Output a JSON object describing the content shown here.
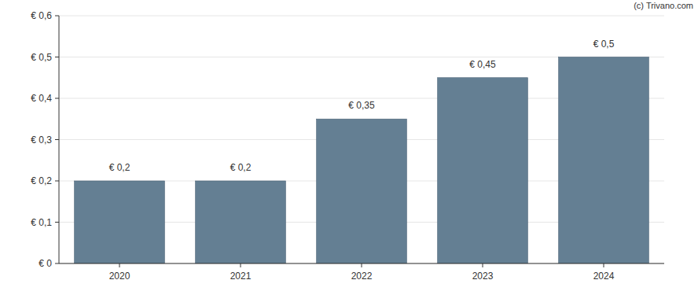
{
  "chart_data": {
    "type": "bar",
    "source": "(c) Trivano.com",
    "categories": [
      "2020",
      "2021",
      "2022",
      "2023",
      "2024"
    ],
    "values": [
      0.2,
      0.2,
      0.35,
      0.45,
      0.5
    ],
    "value_labels": [
      "€ 0,2",
      "€ 0,2",
      "€ 0,35",
      "€ 0,45",
      "€ 0,5"
    ],
    "color": "#647f93",
    "ylim": [
      0,
      0.6
    ],
    "yticks": [
      {
        "value": 0,
        "label": "€ 0"
      },
      {
        "value": 0.1,
        "label": "€ 0,1"
      },
      {
        "value": 0.2,
        "label": "€ 0,2"
      },
      {
        "value": 0.3,
        "label": "€ 0,3"
      },
      {
        "value": 0.4,
        "label": "€ 0,4"
      },
      {
        "value": 0.5,
        "label": "€ 0,5"
      },
      {
        "value": 0.6,
        "label": "€ 0,6"
      }
    ],
    "grid": true,
    "data_labels": true
  }
}
